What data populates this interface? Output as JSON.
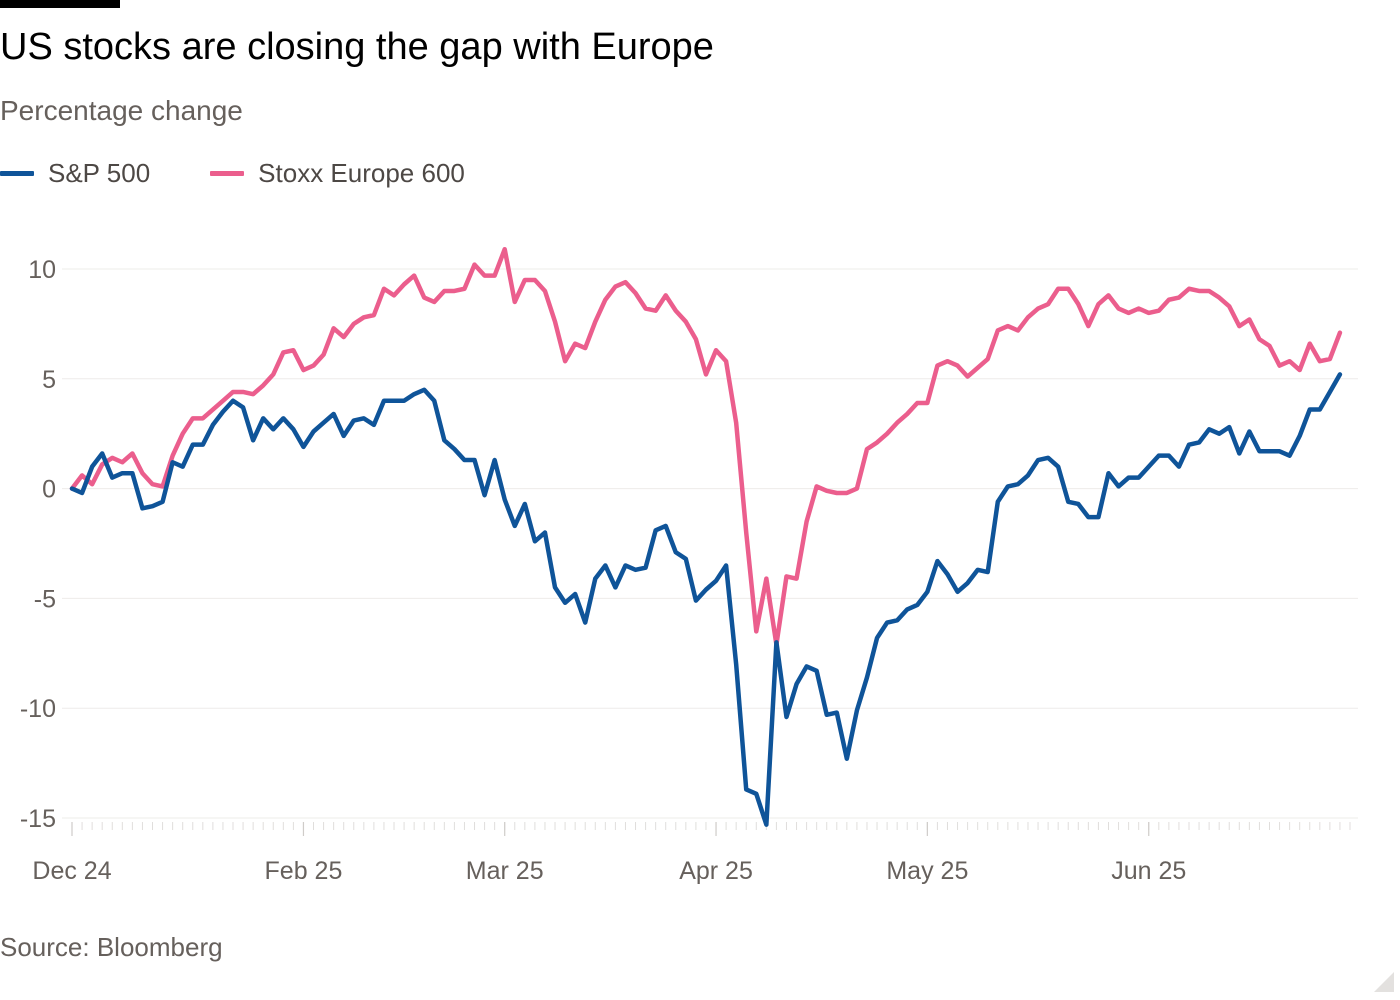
{
  "header": {
    "title": "US stocks are closing the gap with Europe",
    "subtitle": "Percentage change"
  },
  "footer": {
    "source": "Source: Bloomberg"
  },
  "colors": {
    "sp500": "#0f5499",
    "stoxx": "#eb5e8d",
    "grid": "#eeecea",
    "axis_text": "#66605c"
  },
  "chart_data": {
    "type": "line",
    "title": "US stocks are closing the gap with Europe",
    "subtitle": "Percentage change",
    "xlabel": "",
    "ylabel": "",
    "ylim": [
      -15,
      10
    ],
    "yticks": [
      10,
      5,
      0,
      -5,
      -10,
      -15
    ],
    "grid": true,
    "legend": "top-left",
    "x_index_range": [
      0,
      127
    ],
    "xticks": [
      {
        "index": 0,
        "label": "Dec 24"
      },
      {
        "index": 23,
        "label": "Feb 25"
      },
      {
        "index": 43,
        "label": "Mar 25"
      },
      {
        "index": 64,
        "label": "Apr 25"
      },
      {
        "index": 85,
        "label": "May 25"
      },
      {
        "index": 107,
        "label": "Jun 25"
      }
    ],
    "series": [
      {
        "name": "S&P 500",
        "color": "#0f5499",
        "values": [
          0.0,
          -0.2,
          1.0,
          1.6,
          0.5,
          0.7,
          0.7,
          -0.9,
          -0.8,
          -0.6,
          1.2,
          1.0,
          2.0,
          2.0,
          2.9,
          3.5,
          4.0,
          3.7,
          2.2,
          3.2,
          2.7,
          3.2,
          2.7,
          1.9,
          2.6,
          3.0,
          3.4,
          2.4,
          3.1,
          3.2,
          2.9,
          4.0,
          4.0,
          4.0,
          4.3,
          4.5,
          4.0,
          2.2,
          1.8,
          1.3,
          1.3,
          -0.3,
          1.3,
          -0.5,
          -1.7,
          -0.7,
          -2.4,
          -2.0,
          -4.5,
          -5.2,
          -4.8,
          -6.1,
          -4.1,
          -3.5,
          -4.5,
          -3.5,
          -3.7,
          -3.6,
          -1.9,
          -1.7,
          -2.9,
          -3.2,
          -5.1,
          -4.6,
          -4.2,
          -3.5,
          -8.0,
          -13.7,
          -13.9,
          -15.3,
          -7.0,
          -10.4,
          -8.9,
          -8.1,
          -8.3,
          -10.3,
          -10.2,
          -12.3,
          -10.1,
          -8.6,
          -6.8,
          -6.1,
          -6.0,
          -5.5,
          -5.3,
          -4.7,
          -3.3,
          -3.9,
          -4.7,
          -4.3,
          -3.7,
          -3.8,
          -0.6,
          0.1,
          0.2,
          0.6,
          1.3,
          1.4,
          1.0,
          -0.6,
          -0.7,
          -1.3,
          -1.3,
          0.7,
          0.1,
          0.5,
          0.5,
          1.0,
          1.5,
          1.5,
          1.0,
          2.0,
          2.1,
          2.7,
          2.5,
          2.8,
          1.6,
          2.6,
          1.7,
          1.7,
          1.7,
          1.5,
          2.4,
          3.6,
          3.6,
          4.4,
          5.2
        ]
      },
      {
        "name": "Stoxx Europe 600",
        "color": "#eb5e8d",
        "values": [
          0.0,
          0.6,
          0.2,
          1.1,
          1.4,
          1.2,
          1.6,
          0.7,
          0.2,
          0.1,
          1.5,
          2.5,
          3.2,
          3.2,
          3.6,
          4.0,
          4.4,
          4.4,
          4.3,
          4.7,
          5.2,
          6.2,
          6.3,
          5.4,
          5.6,
          6.1,
          7.3,
          6.9,
          7.5,
          7.8,
          7.9,
          9.1,
          8.8,
          9.3,
          9.7,
          8.7,
          8.5,
          9.0,
          9.0,
          9.1,
          10.2,
          9.7,
          9.7,
          10.9,
          8.5,
          9.5,
          9.5,
          9.0,
          7.6,
          5.8,
          6.6,
          6.4,
          7.6,
          8.6,
          9.2,
          9.4,
          8.9,
          8.2,
          8.1,
          8.8,
          8.1,
          7.6,
          6.8,
          5.2,
          6.3,
          5.8,
          3.0,
          -2.0,
          -6.5,
          -4.1,
          -7.1,
          -4.0,
          -4.1,
          -1.5,
          0.1,
          -0.1,
          -0.2,
          -0.2,
          0.0,
          1.8,
          2.1,
          2.5,
          3.0,
          3.4,
          3.9,
          3.9,
          5.6,
          5.8,
          5.6,
          5.1,
          5.5,
          5.9,
          7.2,
          7.4,
          7.2,
          7.8,
          8.2,
          8.4,
          9.1,
          9.1,
          8.4,
          7.4,
          8.4,
          8.8,
          8.2,
          8.0,
          8.2,
          8.0,
          8.1,
          8.6,
          8.7,
          9.1,
          9.0,
          9.0,
          8.7,
          8.3,
          7.4,
          7.7,
          6.8,
          6.5,
          5.6,
          5.8,
          5.4,
          6.6,
          5.8,
          5.9,
          7.1
        ]
      }
    ]
  }
}
